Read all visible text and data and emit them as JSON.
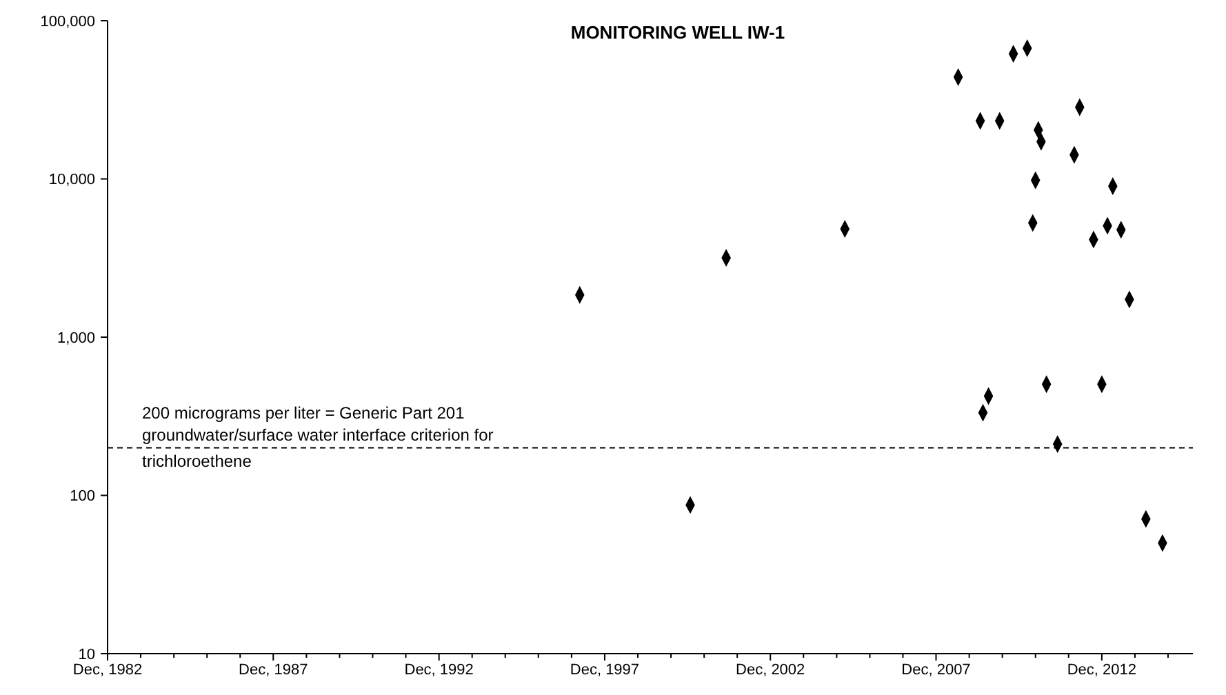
{
  "chart_data": {
    "type": "scatter",
    "title": "MONITORING WELL IW-1",
    "x": [
      "1997-03",
      "2000-07",
      "2001-08",
      "2005-03",
      "2008-08",
      "2009-04",
      "2009-05",
      "2009-07",
      "2009-11",
      "2010-04",
      "2010-09",
      "2010-11",
      "2010-12",
      "2011-01",
      "2011-02",
      "2011-04",
      "2011-08",
      "2012-02",
      "2012-04",
      "2012-09",
      "2012-12",
      "2013-02",
      "2013-04",
      "2013-07",
      "2013-10",
      "2014-04",
      "2014-10"
    ],
    "values": [
      1850,
      87,
      3170,
      4830,
      44000,
      23300,
      333,
      424,
      23300,
      61800,
      67000,
      5270,
      9800,
      20400,
      17200,
      504,
      211,
      14200,
      28400,
      4140,
      504,
      5060,
      9000,
      4770,
      1730,
      71,
      50
    ],
    "color": "#000000",
    "marker": "diamond",
    "log": "y",
    "xlim": [
      "1982-12",
      "2015-09"
    ],
    "xticks": [
      {
        "value": "1982-12",
        "label": "Dec, 1982"
      },
      {
        "value": "1983-12",
        "label": null
      },
      {
        "value": "1984-12",
        "label": null
      },
      {
        "value": "1985-12",
        "label": null
      },
      {
        "value": "1986-12",
        "label": null
      },
      {
        "value": "1987-12",
        "label": "Dec, 1987"
      },
      {
        "value": "1988-12",
        "label": null
      },
      {
        "value": "1989-12",
        "label": null
      },
      {
        "value": "1990-12",
        "label": null
      },
      {
        "value": "1991-12",
        "label": null
      },
      {
        "value": "1992-12",
        "label": "Dec, 1992"
      },
      {
        "value": "1993-12",
        "label": null
      },
      {
        "value": "1994-12",
        "label": null
      },
      {
        "value": "1995-12",
        "label": null
      },
      {
        "value": "1996-12",
        "label": null
      },
      {
        "value": "1997-12",
        "label": "Dec, 1997"
      },
      {
        "value": "1998-12",
        "label": null
      },
      {
        "value": "1999-12",
        "label": null
      },
      {
        "value": "2000-12",
        "label": null
      },
      {
        "value": "2001-12",
        "label": null
      },
      {
        "value": "2002-12",
        "label": "Dec, 2002"
      },
      {
        "value": "2003-12",
        "label": null
      },
      {
        "value": "2004-12",
        "label": null
      },
      {
        "value": "2005-12",
        "label": null
      },
      {
        "value": "2006-12",
        "label": null
      },
      {
        "value": "2007-12",
        "label": "Dec, 2007"
      },
      {
        "value": "2008-12",
        "label": null
      },
      {
        "value": "2009-12",
        "label": null
      },
      {
        "value": "2010-12",
        "label": null
      },
      {
        "value": "2011-12",
        "label": null
      },
      {
        "value": "2012-12",
        "label": "Dec, 2012"
      },
      {
        "value": "2013-12",
        "label": null
      },
      {
        "value": "2014-12",
        "label": null
      }
    ],
    "ylim": [
      10,
      100000
    ],
    "yticks": [
      10,
      100,
      {
        "value": 1000,
        "label": "1,000"
      },
      {
        "value": 10000,
        "label": "10,000"
      },
      {
        "value": 100000,
        "label": "100,000"
      }
    ],
    "ref_lines": [
      {
        "axis": "y",
        "value": 200,
        "label": "200 micrograms per liter = Generic Part 201 groundwater/surface water interface criterion for trichloroethene",
        "color": "#000000",
        "line_style": "dashed"
      }
    ]
  }
}
